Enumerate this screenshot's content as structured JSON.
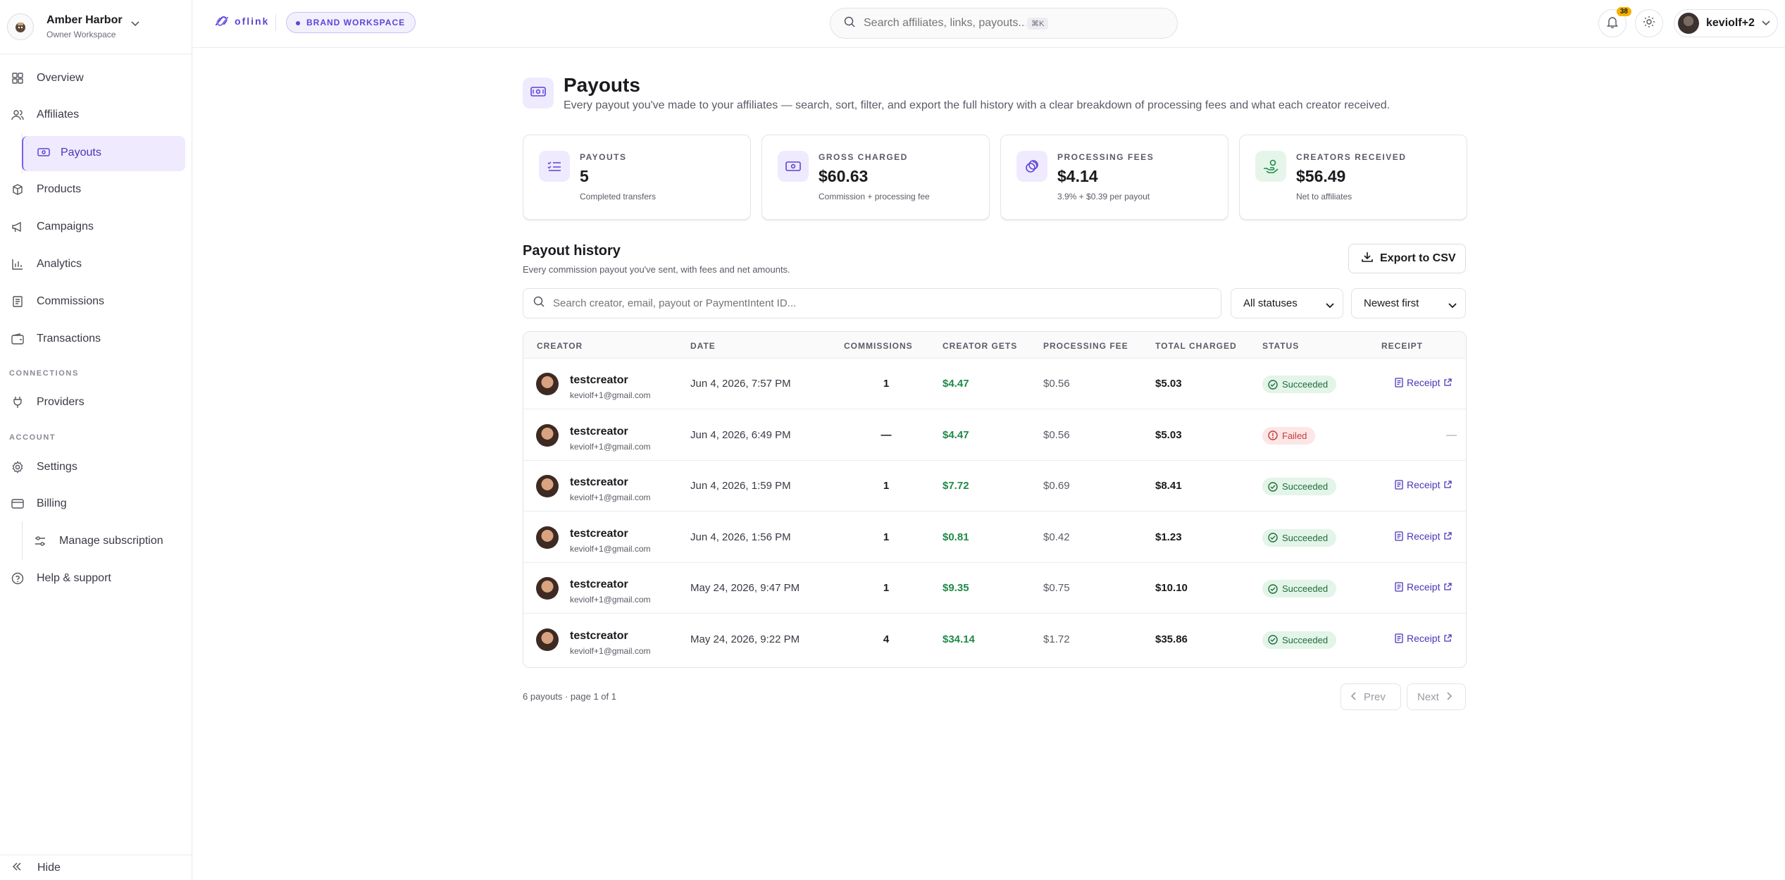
{
  "workspace": {
    "name": "Amber Harbor",
    "role": "Owner Workspace"
  },
  "sidebar": {
    "items": [
      {
        "label": "Overview",
        "icon": "grid-icon"
      },
      {
        "label": "Affiliates",
        "icon": "users-icon"
      },
      {
        "label": "Payouts",
        "icon": "banknote-icon"
      },
      {
        "label": "Products",
        "icon": "box-icon"
      },
      {
        "label": "Campaigns",
        "icon": "megaphone-icon"
      },
      {
        "label": "Analytics",
        "icon": "bar-chart-icon"
      },
      {
        "label": "Commissions",
        "icon": "receipt-icon"
      },
      {
        "label": "Transactions",
        "icon": "wallet-icon"
      }
    ],
    "connections_label": "CONNECTIONS",
    "providers_label": "Providers",
    "account_label": "ACCOUNT",
    "settings_label": "Settings",
    "billing_label": "Billing",
    "manage_sub_label": "Manage subscription",
    "help_label": "Help & support",
    "hide_label": "Hide"
  },
  "topbar": {
    "logo_text": "oflink",
    "brand_workspace": "BRAND WORKSPACE",
    "search_placeholder": "Search affiliates, links, payouts...",
    "search_shortcut": "⌘K",
    "notification_count": "38",
    "user_name": "keviolf+2"
  },
  "page": {
    "title": "Payouts",
    "subtitle": "Every payout you've made to your affiliates — search, sort, filter, and export the full history with a clear breakdown of processing fees and what each creator received."
  },
  "stats": [
    {
      "label": "PAYOUTS",
      "value": "5",
      "note": "Completed transfers",
      "color": "#efeafd"
    },
    {
      "label": "GROSS CHARGED",
      "value": "$60.63",
      "note": "Commission + processing fee",
      "color": "#efeafd"
    },
    {
      "label": "PROCESSING FEES",
      "value": "$4.14",
      "note": "3.9% + $0.39 per payout",
      "color": "#efeafd"
    },
    {
      "label": "CREATORS RECEIVED",
      "value": "$56.49",
      "note": "Net to affiliates",
      "color": "#e5f5ea"
    }
  ],
  "history": {
    "title": "Payout history",
    "subtitle": "Every commission payout you've sent, with fees and net amounts.",
    "export_label": "Export to CSV",
    "search_placeholder": "Search creator, email, payout or PaymentIntent ID...",
    "status_filter": "All statuses",
    "sort_filter": "Newest first"
  },
  "table": {
    "columns": [
      "CREATOR",
      "DATE",
      "COMMISSIONS",
      "CREATOR GETS",
      "PROCESSING FEE",
      "TOTAL CHARGED",
      "STATUS",
      "RECEIPT"
    ],
    "rows": [
      {
        "name": "testcreator",
        "email": "keviolf+1@gmail.com",
        "date": "Jun 4, 2026, 7:57 PM",
        "commissions": "1",
        "creator_gets": "$4.47",
        "fee": "$0.56",
        "total": "$5.03",
        "status": "Succeeded",
        "receipt": "Receipt"
      },
      {
        "name": "testcreator",
        "email": "keviolf+1@gmail.com",
        "date": "Jun 4, 2026, 6:49 PM",
        "commissions": "—",
        "creator_gets": "$4.47",
        "fee": "$0.56",
        "total": "$5.03",
        "status": "Failed",
        "receipt": "—"
      },
      {
        "name": "testcreator",
        "email": "keviolf+1@gmail.com",
        "date": "Jun 4, 2026, 1:59 PM",
        "commissions": "1",
        "creator_gets": "$7.72",
        "fee": "$0.69",
        "total": "$8.41",
        "status": "Succeeded",
        "receipt": "Receipt"
      },
      {
        "name": "testcreator",
        "email": "keviolf+1@gmail.com",
        "date": "Jun 4, 2026, 1:56 PM",
        "commissions": "1",
        "creator_gets": "$0.81",
        "fee": "$0.42",
        "total": "$1.23",
        "status": "Succeeded",
        "receipt": "Receipt"
      },
      {
        "name": "testcreator",
        "email": "keviolf+1@gmail.com",
        "date": "May 24, 2026, 9:47 PM",
        "commissions": "1",
        "creator_gets": "$9.35",
        "fee": "$0.75",
        "total": "$10.10",
        "status": "Succeeded",
        "receipt": "Receipt"
      },
      {
        "name": "testcreator",
        "email": "keviolf+1@gmail.com",
        "date": "May 24, 2026, 9:22 PM",
        "commissions": "4",
        "creator_gets": "$34.14",
        "fee": "$1.72",
        "total": "$35.86",
        "status": "Succeeded",
        "receipt": "Receipt"
      }
    ]
  },
  "pagination": {
    "summary": "6 payouts · page 1 of 1",
    "prev": "Prev",
    "next": "Next"
  }
}
